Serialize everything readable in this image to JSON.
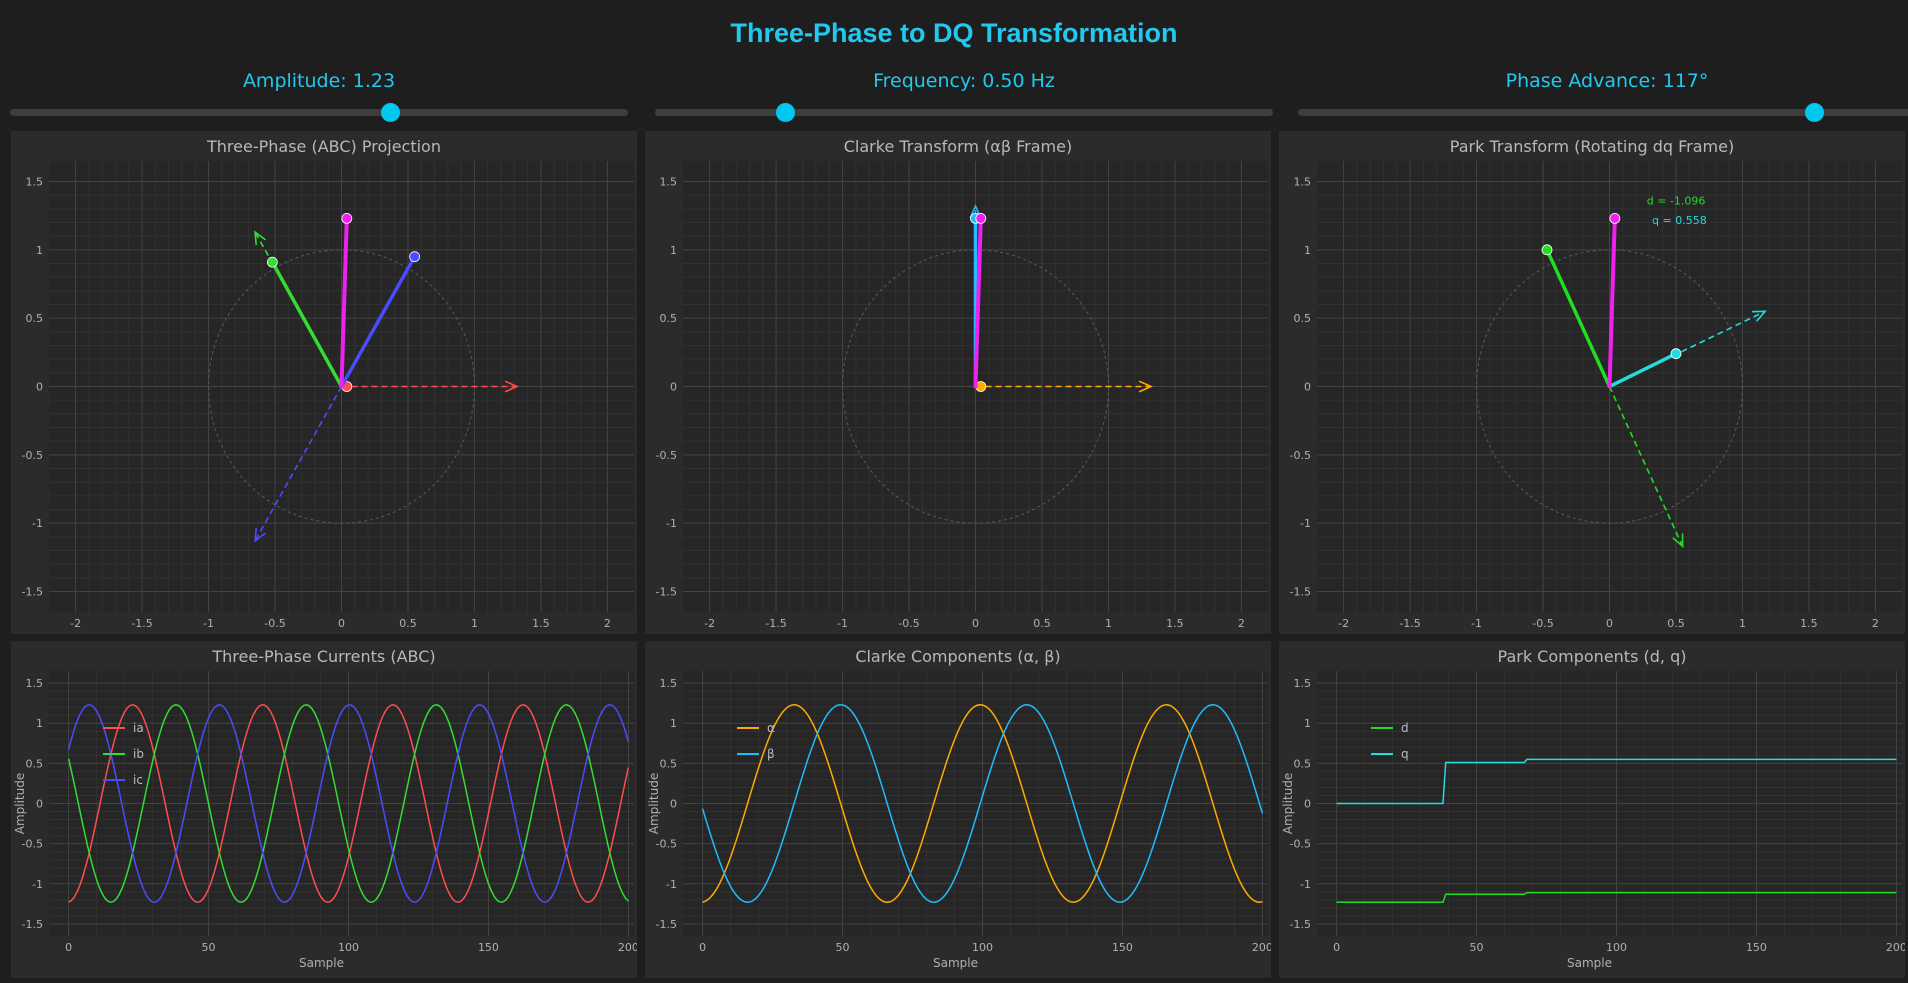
{
  "title": "Three-Phase to DQ Transformation",
  "controls": {
    "amplitude": {
      "label": "Amplitude: 1.23",
      "value": 1.23,
      "min": 0,
      "max": 2
    },
    "frequency": {
      "label": "Frequency: 0.50 Hz",
      "value": 0.5,
      "min": 0.1,
      "max": 2
    },
    "phase": {
      "label": "Phase Advance: 117°",
      "value": 117,
      "min": 0,
      "max": 140
    }
  },
  "colors": {
    "accent": "#22c8ee",
    "ia": "#ff4d4d",
    "ib": "#33dd33",
    "ic": "#4b4bff",
    "resultant": "#ee22ee",
    "alpha": "#ffaa00",
    "beta": "#22bbff",
    "d": "#22dd22",
    "q": "#22dddd",
    "grid": "#3c3c3c"
  },
  "chart_data": [
    {
      "id": "abc",
      "type": "scatter",
      "title": "Three-Phase (ABC) Projection",
      "xlim": [
        -2.2,
        2.2
      ],
      "ylim": [
        -1.65,
        1.65
      ],
      "xticks": [
        -2,
        -1.5,
        -1,
        -0.5,
        0,
        0.5,
        1,
        1.5,
        2
      ],
      "yticks": [
        -1.5,
        -1,
        -0.5,
        0,
        0.5,
        1,
        1.5
      ],
      "unit_circle_radius": 1,
      "axis_arrows": [
        {
          "name": "a-axis",
          "color": "#ff4d4d",
          "to": [
            1.32,
            0
          ]
        },
        {
          "name": "b-axis",
          "color": "#33dd33",
          "to": [
            -0.65,
            1.13
          ]
        },
        {
          "name": "c-axis",
          "color": "#4b4bff",
          "to": [
            -0.65,
            -1.13
          ]
        }
      ],
      "vectors": [
        {
          "name": "ia-vector",
          "color": "#ff4d4d",
          "to": [
            0.04,
            0
          ]
        },
        {
          "name": "ib-vector",
          "color": "#33dd33",
          "to": [
            -0.52,
            0.91
          ]
        },
        {
          "name": "ic-vector",
          "color": "#4b4bff",
          "to": [
            0.55,
            0.95
          ]
        },
        {
          "name": "resultant-vector",
          "color": "#ee22ee",
          "to": [
            0.04,
            1.23
          ]
        }
      ]
    },
    {
      "id": "clarke",
      "type": "scatter",
      "title": "Clarke Transform (αβ Frame)",
      "xlim": [
        -2.2,
        2.2
      ],
      "ylim": [
        -1.65,
        1.65
      ],
      "xticks": [
        -2,
        -1.5,
        -1,
        -0.5,
        0,
        0.5,
        1,
        1.5,
        2
      ],
      "yticks": [
        -1.5,
        -1,
        -0.5,
        0,
        0.5,
        1,
        1.5
      ],
      "unit_circle_radius": 1,
      "axis_arrows": [
        {
          "name": "alpha-axis",
          "color": "#ffaa00",
          "to": [
            1.32,
            0
          ]
        },
        {
          "name": "beta-axis",
          "color": "#22bbff",
          "to": [
            0,
            1.32
          ]
        }
      ],
      "vectors": [
        {
          "name": "alpha-vector",
          "color": "#ffaa00",
          "to": [
            0.04,
            0
          ]
        },
        {
          "name": "beta-vector",
          "color": "#22bbff",
          "to": [
            0,
            1.23
          ]
        },
        {
          "name": "resultant-vector",
          "color": "#ee22ee",
          "to": [
            0.04,
            1.23
          ]
        }
      ]
    },
    {
      "id": "park",
      "type": "scatter",
      "title": "Park Transform (Rotating dq Frame)",
      "xlim": [
        -2.2,
        2.2
      ],
      "ylim": [
        -1.65,
        1.65
      ],
      "xticks": [
        -2,
        -1.5,
        -1,
        -0.5,
        0,
        0.5,
        1,
        1.5,
        2
      ],
      "yticks": [
        -1.5,
        -1,
        -0.5,
        0,
        0.5,
        1,
        1.5
      ],
      "unit_circle_radius": 1,
      "axis_arrows": [
        {
          "name": "d-axis",
          "color": "#22dd22",
          "to": [
            0.55,
            -1.17
          ]
        },
        {
          "name": "q-axis",
          "color": "#22dddd",
          "to": [
            1.17,
            0.55
          ]
        }
      ],
      "vectors": [
        {
          "name": "d-vector",
          "color": "#22dd22",
          "to": [
            -0.47,
            1.0
          ]
        },
        {
          "name": "q-vector",
          "color": "#22dddd",
          "to": [
            0.5,
            0.24
          ]
        },
        {
          "name": "resultant-vector",
          "color": "#ee22ee",
          "to": [
            0.04,
            1.23
          ]
        }
      ],
      "annotations": [
        {
          "text": "d = -1.096",
          "color": "#22dd22",
          "at": [
            0.28,
            1.33
          ]
        },
        {
          "text": "q = 0.558",
          "color": "#22dddd",
          "at": [
            0.32,
            1.19
          ]
        }
      ]
    },
    {
      "id": "abc-currents",
      "type": "line",
      "title": "Three-Phase Currents (ABC)",
      "xlabel": "Sample",
      "ylabel": "Amplitude",
      "xlim": [
        -7,
        202
      ],
      "ylim": [
        -1.65,
        1.65
      ],
      "xticks": [
        0,
        50,
        100,
        150,
        200
      ],
      "yticks": [
        -1.5,
        -1,
        -0.5,
        0,
        0.5,
        1,
        1.5
      ],
      "legend": [
        "ia",
        "ib",
        "ic"
      ],
      "generator": {
        "kind": "sine",
        "samples": 201,
        "amplitude": 1.23,
        "period": 46.5,
        "phase0_deg": 183
      },
      "series": [
        {
          "name": "ia",
          "color": "#ff4d4d",
          "offset_deg": 0
        },
        {
          "name": "ib",
          "color": "#33dd33",
          "offset_deg": -120
        },
        {
          "name": "ic",
          "color": "#4b4bff",
          "offset_deg": 120
        }
      ]
    },
    {
      "id": "clarke-components",
      "type": "line",
      "title": "Clarke Components (α, β)",
      "xlabel": "Sample",
      "ylabel": "Amplitude",
      "xlim": [
        -7,
        202
      ],
      "ylim": [
        -1.65,
        1.65
      ],
      "xticks": [
        0,
        50,
        100,
        150,
        200
      ],
      "yticks": [
        -1.5,
        -1,
        -0.5,
        0,
        0.5,
        1,
        1.5
      ],
      "legend": [
        "α",
        "β"
      ],
      "generator": {
        "kind": "sine",
        "samples": 201,
        "amplitude": 1.23,
        "period": 66.5,
        "phase0_deg": 183
      },
      "series": [
        {
          "name": "α",
          "color": "#ffaa00",
          "offset_deg": 0
        },
        {
          "name": "β",
          "color": "#22bbff",
          "offset_deg": -90
        }
      ]
    },
    {
      "id": "park-components",
      "type": "line",
      "title": "Park Components (d, q)",
      "xlabel": "Sample",
      "ylabel": "Amplitude",
      "xlim": [
        -7,
        202
      ],
      "ylim": [
        -1.65,
        1.65
      ],
      "xticks": [
        0,
        50,
        100,
        150,
        200
      ],
      "yticks": [
        -1.5,
        -1,
        -0.5,
        0,
        0.5,
        1,
        1.5
      ],
      "legend": [
        "d",
        "q"
      ],
      "series": [
        {
          "name": "d",
          "color": "#22dd22",
          "steps": [
            [
              0,
              -1.23
            ],
            [
              38,
              -1.23
            ],
            [
              39,
              -1.13
            ],
            [
              67,
              -1.13
            ],
            [
              68,
              -1.11
            ],
            [
              200,
              -1.11
            ]
          ]
        },
        {
          "name": "q",
          "color": "#22dddd",
          "steps": [
            [
              0,
              0
            ],
            [
              38,
              0
            ],
            [
              39,
              0.51
            ],
            [
              67,
              0.51
            ],
            [
              68,
              0.55
            ],
            [
              200,
              0.55
            ]
          ]
        }
      ]
    }
  ]
}
